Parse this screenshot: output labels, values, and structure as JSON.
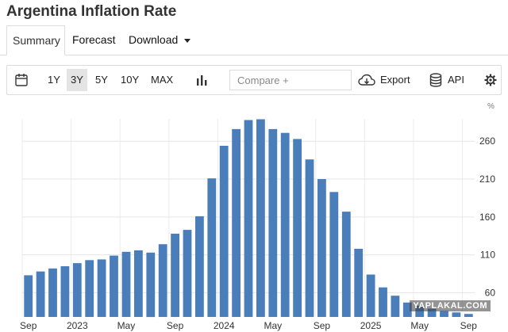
{
  "page": {
    "title": "Argentina Inflation Rate"
  },
  "tabs": [
    {
      "label": "Summary",
      "active": true
    },
    {
      "label": "Forecast",
      "active": false
    },
    {
      "label": "Download",
      "active": false,
      "has_dropdown": true
    }
  ],
  "toolbar": {
    "calendar_icon": "calendar-icon",
    "ranges": [
      "1Y",
      "3Y",
      "5Y",
      "10Y",
      "MAX"
    ],
    "selected_range": "3Y",
    "chart_type_icon": "bar-chart-icon",
    "compare_placeholder": "Compare +",
    "export_label": "Export",
    "export_icon": "cloud-download-icon",
    "api_label": "API",
    "api_icon": "database-icon",
    "settings_icon": "gear-icon"
  },
  "watermark": {
    "text": "YAPLAKAL.COM"
  },
  "chart_data": {
    "type": "bar",
    "unit": "%",
    "color": "#4a7ebb",
    "y_ticks": [
      60,
      110,
      160,
      210,
      260
    ],
    "ylim": [
      28,
      300
    ],
    "grid": true,
    "x_tick_labels": [
      {
        "label": "Sep",
        "index": 0
      },
      {
        "label": "2023",
        "index": 4
      },
      {
        "label": "May",
        "index": 8
      },
      {
        "label": "Sep",
        "index": 12
      },
      {
        "label": "2024",
        "index": 16
      },
      {
        "label": "May",
        "index": 20
      },
      {
        "label": "Sep",
        "index": 24
      },
      {
        "label": "2025",
        "index": 28
      },
      {
        "label": "May",
        "index": 32
      },
      {
        "label": "Sep",
        "index": 36
      }
    ],
    "categories": [
      "2022-09",
      "2022-10",
      "2022-11",
      "2022-12",
      "2023-01",
      "2023-02",
      "2023-03",
      "2023-04",
      "2023-05",
      "2023-06",
      "2023-07",
      "2023-08",
      "2023-09",
      "2023-10",
      "2023-11",
      "2023-12",
      "2024-01",
      "2024-02",
      "2024-03",
      "2024-04",
      "2024-05",
      "2024-06",
      "2024-07",
      "2024-08",
      "2024-09",
      "2024-10",
      "2024-11",
      "2024-12",
      "2025-01",
      "2025-02",
      "2025-03",
      "2025-04",
      "2025-05",
      "2025-06",
      "2025-07",
      "2025-08",
      "2025-09"
    ],
    "values": [
      83,
      88,
      92,
      95,
      99,
      103,
      104,
      109,
      114,
      116,
      113,
      124,
      138,
      143,
      161,
      211,
      254,
      276,
      288,
      289,
      276,
      271,
      263,
      236,
      210,
      193,
      167,
      118,
      84,
      67,
      56,
      47,
      43,
      39,
      36,
      34,
      32
    ]
  }
}
